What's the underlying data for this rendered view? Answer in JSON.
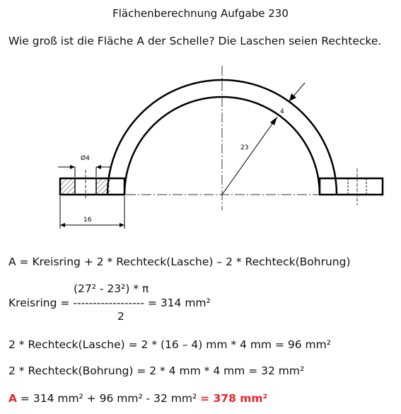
{
  "title": "Flächenberechnung Aufgabe 230",
  "question": "Wie groß ist die Fläche A der Schelle? Die Laschen seien Rechtecke.",
  "drawing": {
    "label_thickness": "4",
    "label_radius": "23",
    "label_hole": "Ø4",
    "label_width": "16"
  },
  "formula": {
    "main": "A = Kreisring + 2 * Rechteck(Lasche) – 2 * Rechteck(Bohrung)",
    "ring_numerator": "(27² - 23²) * π",
    "ring_lhs": "Kreisring = ------------------ = 314 mm²",
    "ring_denominator": "2",
    "lasche": "2 * Rechteck(Lasche) = 2 * (16 – 4) mm * 4 mm = 96 mm²",
    "bohrung": "2 * Rechteck(Bohrung) = 2 * 4 mm * 4 mm = 32 mm²",
    "result_label": "A",
    "result_middle": " = 314 mm² + 96 mm² - 32 mm² ",
    "result_value": "= 378 mm²"
  }
}
